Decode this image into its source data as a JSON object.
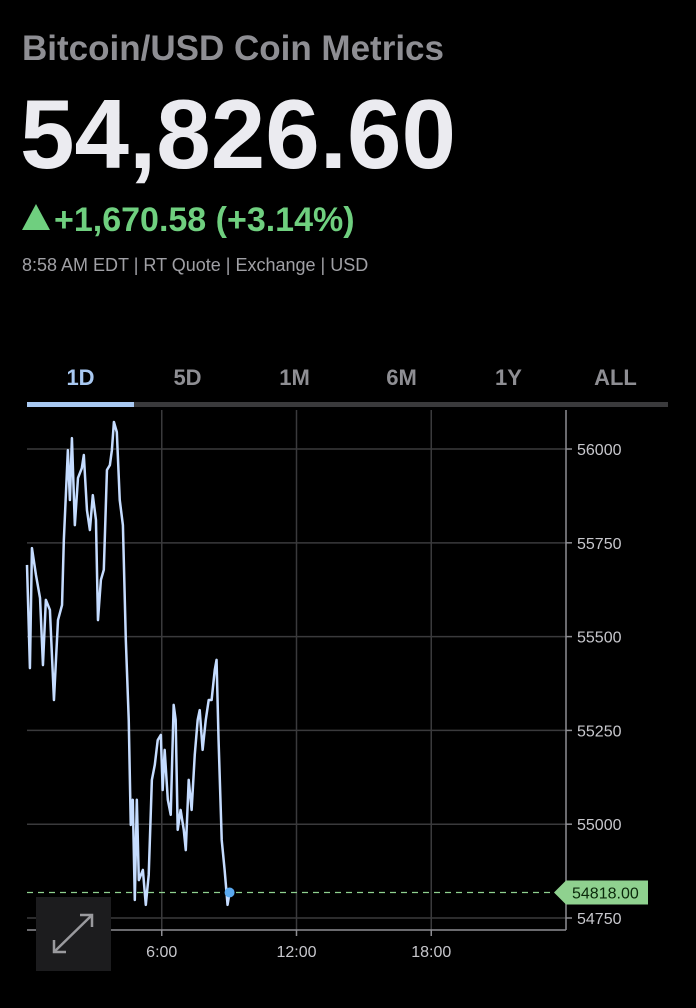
{
  "header": {
    "title": "Bitcoin/USD Coin Metrics",
    "price": "54,826.60",
    "change": "+1,670.58 (+3.14%)",
    "meta": "8:58 AM EDT | RT Quote | Exchange | USD"
  },
  "tabs": [
    "1D",
    "5D",
    "1M",
    "6M",
    "1Y",
    "ALL"
  ],
  "selected_tab_index": 0,
  "chart_data": {
    "type": "line",
    "x": [
      0,
      0.13,
      0.22,
      0.4,
      0.58,
      0.71,
      0.84,
      1.02,
      1.2,
      1.38,
      1.56,
      1.64,
      1.82,
      1.91,
      2.0,
      2.13,
      2.27,
      2.44,
      2.53,
      2.67,
      2.8,
      2.93,
      3.07,
      3.16,
      3.29,
      3.42,
      3.56,
      3.69,
      3.78,
      3.87,
      4.0,
      4.13,
      4.27,
      4.4,
      4.53,
      4.62,
      4.71,
      4.8,
      4.89,
      4.98,
      5.16,
      5.29,
      5.42,
      5.56,
      5.69,
      5.82,
      5.96,
      6.04,
      6.13,
      6.27,
      6.4,
      6.53,
      6.62,
      6.71,
      6.84,
      6.98,
      7.07,
      7.2,
      7.33,
      7.47,
      7.6,
      7.69,
      7.82,
      7.96,
      8.09,
      8.22,
      8.36,
      8.44,
      8.53,
      8.67,
      8.8,
      8.93,
      9.02
    ],
    "series": [
      {
        "color": "#c5dcff",
        "values": [
          55691,
          55416,
          55736,
          55664,
          55603,
          55424,
          55598,
          55571,
          55331,
          55544,
          55584,
          55757,
          55997,
          55864,
          56029,
          55797,
          55923,
          55949,
          55984,
          55837,
          55784,
          55877,
          55811,
          55544,
          55651,
          55678,
          55944,
          55957,
          55997,
          56072,
          56045,
          55864,
          55797,
          55491,
          55278,
          54998,
          55065,
          54798,
          55065,
          54851,
          54878,
          54785,
          54865,
          55118,
          55158,
          55224,
          55238,
          55091,
          55198,
          55065,
          55025,
          55318,
          55278,
          54985,
          55038,
          54985,
          54931,
          55118,
          55038,
          55185,
          55278,
          55304,
          55198,
          55278,
          55331,
          55331,
          55411,
          55438,
          55224,
          54958,
          54878,
          54785,
          54818
        ]
      }
    ],
    "xlim": [
      0,
      24
    ],
    "xticks": [
      {
        "value": 6,
        "label": "6:00"
      },
      {
        "value": 12,
        "label": "12:00"
      },
      {
        "value": 18,
        "label": "18:00"
      }
    ],
    "ylim": [
      54718,
      56104
    ],
    "yticks": [
      56000,
      55750,
      55500,
      55250,
      55000,
      54750
    ],
    "grid": true,
    "reference_line": {
      "value": 54818,
      "label": "54818.00",
      "color": "#8fd18f"
    }
  }
}
